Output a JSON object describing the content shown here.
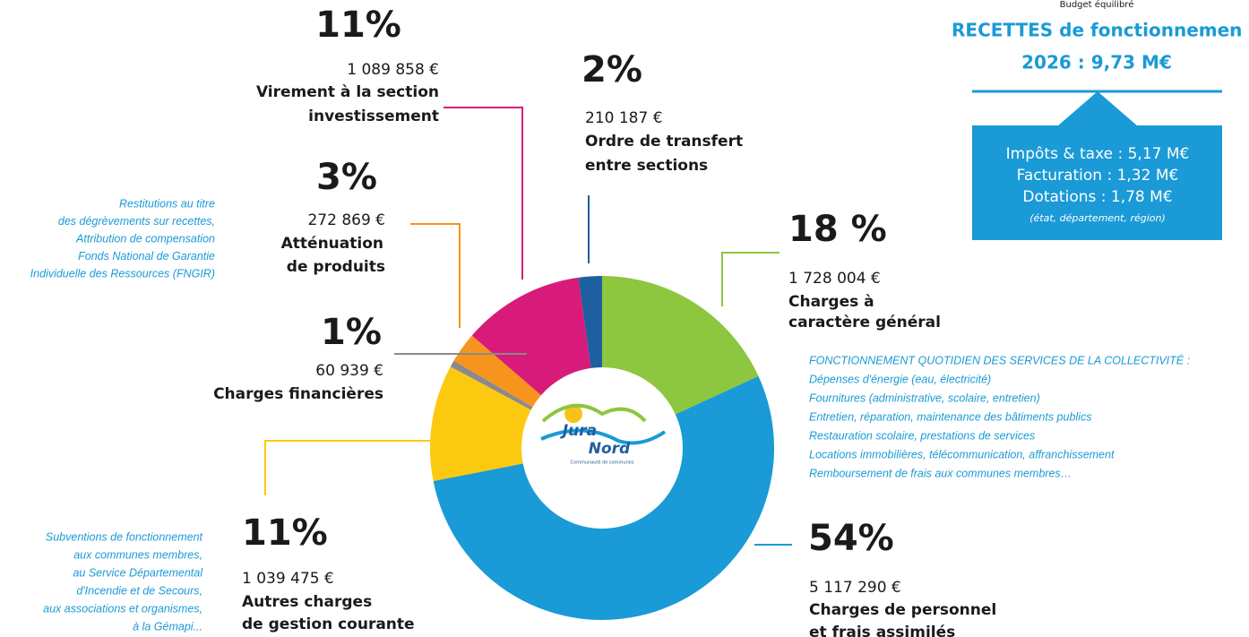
{
  "chart_data": {
    "type": "donut",
    "categories": [
      [
        "Charges à",
        "caractère général"
      ],
      [
        "Charges de personnel",
        "et frais assimilés"
      ],
      [
        "Autres charges",
        "de gestion courante"
      ],
      [
        "Charges financières"
      ],
      [
        "Atténuation",
        "de produits"
      ],
      [
        "Virement à la section",
        "investissement"
      ],
      [
        "Ordre de transfert",
        "entre sections"
      ]
    ],
    "values": [
      1728004,
      5117290,
      1039475,
      60939,
      272869,
      1089858,
      210187
    ],
    "value_labels": [
      "1 728 004 €",
      "5 117 290 €",
      "1 039 475 €",
      "60 939 €",
      "272 869 €",
      "1 089 858 €",
      "210 187 €"
    ],
    "percents": [
      18,
      54,
      11,
      1,
      3,
      11,
      2
    ],
    "percent_labels": [
      "18 %",
      "54%",
      "11%",
      "1%",
      "3%",
      "11%",
      "2%"
    ],
    "colors": [
      "#8dc63f",
      "#1a9ad6",
      "#fcc911",
      "#8a8a8a",
      "#f7941d",
      "#d81b7a",
      "#1e5fa0"
    ]
  },
  "notes": {
    "general": [
      "FONCTIONNEMENT QUOTIDIEN DES SERVICES DE LA COLLECTIVITÉ :",
      "Dépenses d'énergie (eau, électricité)",
      "Fournitures (administrative, scolaire, entretien)",
      "Entretien, réparation, maintenance des bâtiments publics",
      "Restauration scolaire, prestations de services",
      "Locations immobilières, télécommunication, affranchissement",
      "Remboursement de frais aux communes membres…"
    ],
    "attenuation": [
      "Restitutions au titre",
      "des dégrèvements sur recettes,",
      "Attribution de compensation",
      "Fonds National de Garantie",
      "Individuelle des Ressources (FNGIR)"
    ],
    "autres": [
      "Subventions de fonctionnement",
      "aux communes membres,",
      "au Service Départemental",
      "d'Incendie et de Secours,",
      "aux associations et organismes,",
      "à la Gémapi..."
    ]
  },
  "recettes": {
    "subtitle": "Budget équilibré",
    "title": "RECETTES de fonctionnemen",
    "total": "2026 : 9,73 M€",
    "items": [
      "Impôts & taxe : 5,17 M€",
      "Facturation : 1,32 M€",
      "Dotations : 1,78 M€"
    ],
    "note": "(état, département, région)"
  },
  "logo": {
    "line1": "Jura",
    "line2": "Nord",
    "sub": "Communauté de communes"
  }
}
